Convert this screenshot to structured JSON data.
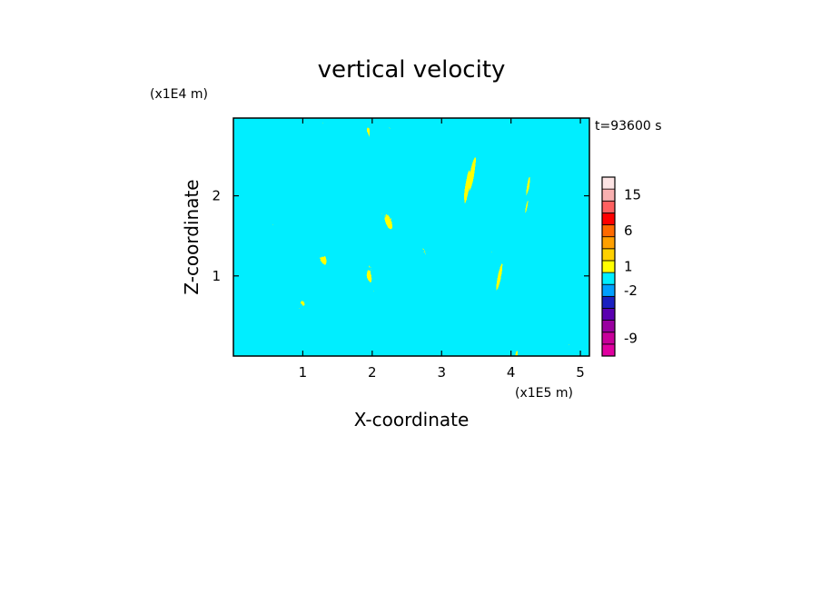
{
  "chart_data": {
    "type": "heatmap",
    "title": "vertical velocity",
    "xlabel": "X-coordinate",
    "ylabel": "Z-coordinate",
    "x_unit": "(x1E5 m)",
    "y_unit": "(x1E4 m)",
    "time_label": "t=93600 s",
    "xlim": [
      0,
      5.13
    ],
    "ylim": [
      0,
      2.97
    ],
    "x_ticks": [
      1,
      2,
      3,
      4,
      5
    ],
    "y_ticks": [
      1,
      2
    ],
    "field_colors": {
      "positive": "#ffff00",
      "negative": "#00eeff"
    },
    "colorbar": {
      "levels": [
        {
          "color": "#e000a0"
        },
        {
          "color": "#c8009a"
        },
        {
          "color": "#9a00a0"
        },
        {
          "color": "#5a00b0"
        },
        {
          "color": "#1a20c0"
        },
        {
          "color": "#00a0ff"
        },
        {
          "color": "#00eeff"
        },
        {
          "color": "#ffff00"
        },
        {
          "color": "#ffd000"
        },
        {
          "color": "#ffa000"
        },
        {
          "color": "#ff6a00"
        },
        {
          "color": "#ff0000"
        },
        {
          "color": "#ff6060"
        },
        {
          "color": "#f8b0b0"
        },
        {
          "color": "#fde4e4"
        }
      ],
      "labels": [
        {
          "text": "-9",
          "level_index": 1
        },
        {
          "text": "-2",
          "level_index": 5
        },
        {
          "text": "1",
          "level_index": 7
        },
        {
          "text": "6",
          "level_index": 10
        },
        {
          "text": "15",
          "level_index": 13
        }
      ]
    }
  }
}
